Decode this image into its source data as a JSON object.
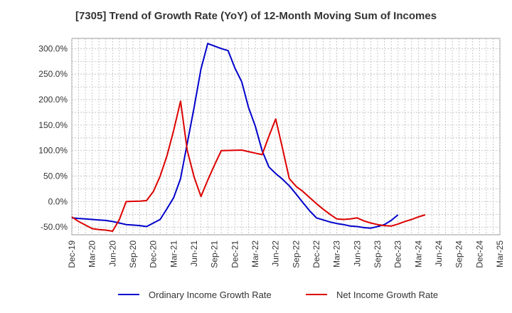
{
  "chart_data": {
    "type": "line",
    "title": "[7305]  Trend of Growth Rate (YoY) of 12-Month Moving Sum of Incomes",
    "xlabel": "",
    "ylabel": "",
    "x_ticks": [
      "Dec-19",
      "Mar-20",
      "Jun-20",
      "Sep-20",
      "Dec-20",
      "Mar-21",
      "Jun-21",
      "Sep-21",
      "Dec-21",
      "Mar-22",
      "Jun-22",
      "Sep-22",
      "Dec-22",
      "Mar-23",
      "Jun-23",
      "Sep-23",
      "Dec-23",
      "Mar-24",
      "Jun-24",
      "Sep-24",
      "Dec-24",
      "Mar-25"
    ],
    "y_ticks": [
      "300.0%",
      "250.0%",
      "200.0%",
      "150.0%",
      "100.0%",
      "50.0%",
      "0.0%",
      "-50.0%"
    ],
    "y_tick_values": [
      300,
      250,
      200,
      150,
      100,
      50,
      0,
      -50
    ],
    "ylim": [
      -65,
      320
    ],
    "x_count": 64,
    "grid": true,
    "legend_position": "bottom",
    "series": [
      {
        "name": "Ordinary Income Growth Rate",
        "color": "#0000cc",
        "values": [
          -32,
          -33,
          -34,
          -35,
          -36,
          -37,
          -39,
          -42,
          -45,
          -46,
          -47,
          -49,
          -42,
          -35,
          -14,
          8,
          45,
          115,
          185,
          260,
          310,
          305,
          300,
          296,
          262,
          235,
          185,
          148,
          100,
          68,
          55,
          44,
          31,
          15,
          -2,
          -18,
          -32,
          -36,
          -40,
          -43,
          -45,
          -48,
          -49,
          -51,
          -52,
          -49,
          -45,
          -37,
          -26
        ]
      },
      {
        "name": "Net Income Growth Rate",
        "color": "#dd0000",
        "values": [
          -30,
          -39,
          -46,
          -53,
          -55,
          -56,
          -58,
          -35,
          0,
          0.5,
          1,
          2,
          20,
          50,
          90,
          140,
          197,
          100,
          48,
          10,
          42,
          72,
          100,
          100.3,
          100.6,
          101,
          98,
          95,
          92,
          128,
          162,
          105,
          45,
          30,
          20,
          8,
          -4,
          -15,
          -25,
          -34,
          -35,
          -34,
          -32,
          -38,
          -42,
          -45,
          -47,
          -48,
          -44,
          -39,
          -35,
          -30,
          -26
        ]
      }
    ]
  }
}
